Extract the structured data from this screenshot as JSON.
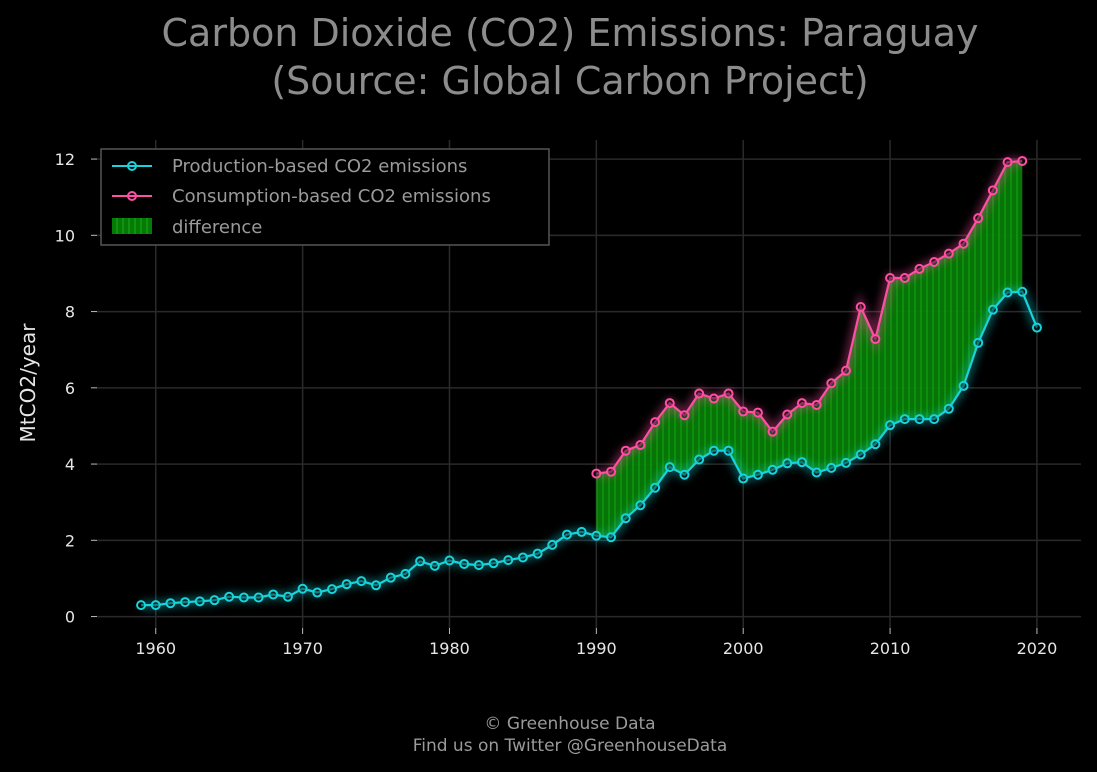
{
  "chart_data": {
    "type": "line",
    "title_line1": "Carbon Dioxide (CO2) Emissions: Paraguay",
    "title_line2": "(Source: Global Carbon Project)",
    "xlabel": "",
    "ylabel": "MtCO2/year",
    "xlim": [
      1956,
      2023
    ],
    "ylim": [
      -0.3,
      12.5
    ],
    "x_ticks": [
      1960,
      1970,
      1980,
      1990,
      2000,
      2010,
      2020
    ],
    "y_ticks": [
      0,
      2,
      4,
      6,
      8,
      10,
      12
    ],
    "grid": true,
    "legend_position": "top-left",
    "colors": {
      "production": "#19d3da",
      "consumption": "#ff4fa3",
      "difference": "#0a8a0a",
      "background": "#000000",
      "grid": "#2a2a2a"
    },
    "series": [
      {
        "name": "Production-based CO2 emissions",
        "x": [
          1959,
          1960,
          1961,
          1962,
          1963,
          1964,
          1965,
          1966,
          1967,
          1968,
          1969,
          1970,
          1971,
          1972,
          1973,
          1974,
          1975,
          1976,
          1977,
          1978,
          1979,
          1980,
          1981,
          1982,
          1983,
          1984,
          1985,
          1986,
          1987,
          1988,
          1989,
          1990,
          1991,
          1992,
          1993,
          1994,
          1995,
          1996,
          1997,
          1998,
          1999,
          2000,
          2001,
          2002,
          2003,
          2004,
          2005,
          2006,
          2007,
          2008,
          2009,
          2010,
          2011,
          2012,
          2013,
          2014,
          2015,
          2016,
          2017,
          2018,
          2019,
          2020
        ],
        "values": [
          0.3,
          0.3,
          0.35,
          0.38,
          0.4,
          0.43,
          0.52,
          0.5,
          0.5,
          0.58,
          0.52,
          0.73,
          0.63,
          0.72,
          0.85,
          0.93,
          0.82,
          1.02,
          1.12,
          1.45,
          1.33,
          1.47,
          1.38,
          1.35,
          1.4,
          1.48,
          1.55,
          1.65,
          1.88,
          2.15,
          2.22,
          2.12,
          2.08,
          2.58,
          2.92,
          3.38,
          3.92,
          3.72,
          4.12,
          4.35,
          4.35,
          3.62,
          3.72,
          3.85,
          4.02,
          4.05,
          3.78,
          3.9,
          4.03,
          4.25,
          4.52,
          5.02,
          5.18,
          5.18,
          5.18,
          5.45,
          6.05,
          7.18,
          8.05,
          8.5,
          8.52,
          7.58
        ]
      },
      {
        "name": "Consumption-based CO2 emissions",
        "x": [
          1990,
          1991,
          1992,
          1993,
          1994,
          1995,
          1996,
          1997,
          1998,
          1999,
          2000,
          2001,
          2002,
          2003,
          2004,
          2005,
          2006,
          2007,
          2008,
          2009,
          2010,
          2011,
          2012,
          2013,
          2014,
          2015,
          2016,
          2017,
          2018,
          2019
        ],
        "values": [
          3.75,
          3.8,
          4.35,
          4.5,
          5.1,
          5.6,
          5.28,
          5.85,
          5.72,
          5.85,
          5.38,
          5.35,
          4.85,
          5.3,
          5.6,
          5.55,
          6.12,
          6.45,
          8.12,
          7.28,
          8.88,
          8.88,
          9.12,
          9.3,
          9.52,
          9.78,
          10.45,
          11.18,
          11.92,
          11.95
        ]
      }
    ],
    "fill_label": "difference"
  },
  "footer": {
    "line1": "© Greenhouse Data",
    "line2": "Find us on Twitter @GreenhouseData"
  }
}
